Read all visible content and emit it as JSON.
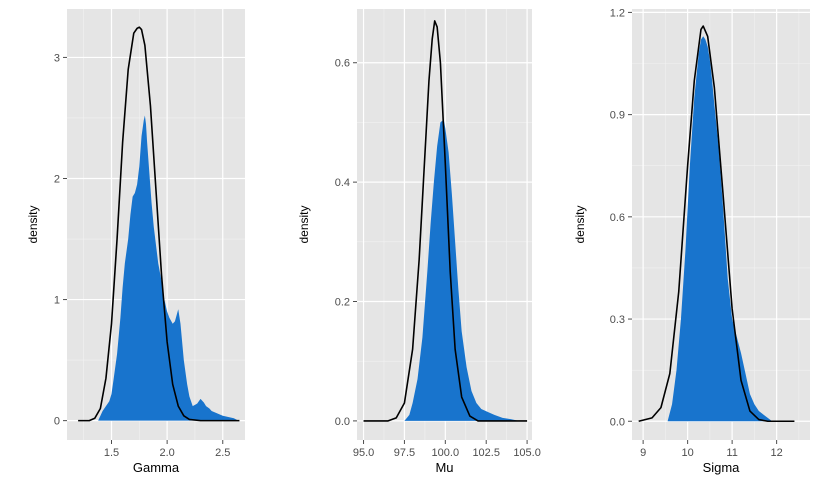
{
  "colors": {
    "panel_background": "#e5e5e5",
    "grid_major": "#ffffff",
    "grid_minor": "#f2f2f2",
    "density_fill": "#1874cd",
    "normal_curve": "#000000",
    "tick_text": "#4d4d4d"
  },
  "chart_data": [
    {
      "type": "area",
      "xlabel": "Gamma",
      "ylabel": "density",
      "xlim": [
        1.1,
        2.7
      ],
      "ylim": [
        -0.16,
        3.4
      ],
      "xticks": [
        1.5,
        2.0,
        2.5
      ],
      "xtick_labels": [
        "1.5",
        "2.0",
        "2.5"
      ],
      "yticks": [
        0,
        1,
        2,
        3
      ],
      "ytick_labels": [
        "0",
        "1",
        "2",
        "3"
      ],
      "grid": true,
      "series": [
        {
          "kind": "kernel-density-area",
          "x": [
            1.38,
            1.42,
            1.45,
            1.48,
            1.5,
            1.52,
            1.55,
            1.58,
            1.6,
            1.62,
            1.65,
            1.67,
            1.69,
            1.71,
            1.73,
            1.75,
            1.77,
            1.79,
            1.8,
            1.81,
            1.82,
            1.84,
            1.86,
            1.88,
            1.9,
            1.92,
            1.95,
            1.97,
            2.0,
            2.02,
            2.05,
            2.07,
            2.1,
            2.12,
            2.15,
            2.18,
            2.2,
            2.23,
            2.27,
            2.3,
            2.33,
            2.35,
            2.38,
            2.4,
            2.45,
            2.5,
            2.55,
            2.6,
            2.64
          ],
          "y": [
            0.0,
            0.08,
            0.12,
            0.16,
            0.22,
            0.35,
            0.55,
            0.85,
            1.1,
            1.3,
            1.5,
            1.7,
            1.85,
            1.88,
            1.95,
            2.1,
            2.35,
            2.48,
            2.52,
            2.45,
            2.3,
            2.05,
            1.8,
            1.6,
            1.45,
            1.3,
            1.15,
            1.02,
            0.9,
            0.85,
            0.8,
            0.82,
            0.92,
            0.8,
            0.5,
            0.3,
            0.2,
            0.12,
            0.14,
            0.18,
            0.15,
            0.12,
            0.1,
            0.08,
            0.06,
            0.04,
            0.03,
            0.02,
            0.0
          ]
        },
        {
          "kind": "normal-density-line",
          "x": [
            1.2,
            1.3,
            1.35,
            1.4,
            1.45,
            1.5,
            1.55,
            1.6,
            1.65,
            1.7,
            1.73,
            1.75,
            1.77,
            1.8,
            1.85,
            1.9,
            1.95,
            2.0,
            2.05,
            2.1,
            2.15,
            2.2,
            2.3,
            2.4,
            2.5,
            2.6,
            2.65
          ],
          "y": [
            0.0,
            0.0,
            0.02,
            0.1,
            0.35,
            0.8,
            1.5,
            2.3,
            2.9,
            3.2,
            3.24,
            3.25,
            3.23,
            3.1,
            2.6,
            1.9,
            1.2,
            0.65,
            0.3,
            0.12,
            0.04,
            0.01,
            0.0,
            0.0,
            0.0,
            0.0,
            0.0
          ]
        }
      ]
    },
    {
      "type": "area",
      "xlabel": "Mu",
      "ylabel": "density",
      "xlim": [
        94.6,
        105.3
      ],
      "ylim": [
        -0.032,
        0.69
      ],
      "xticks": [
        95.0,
        97.5,
        100.0,
        102.5,
        105.0
      ],
      "xtick_labels": [
        "95.0",
        "97.5",
        "100.0",
        "102.5",
        "105.0"
      ],
      "yticks": [
        0.0,
        0.2,
        0.4,
        0.6
      ],
      "ytick_labels": [
        "0.0",
        "0.2",
        "0.4",
        "0.6"
      ],
      "grid": true,
      "series": [
        {
          "kind": "kernel-density-area",
          "x": [
            97.5,
            97.8,
            98.0,
            98.3,
            98.6,
            98.9,
            99.1,
            99.3,
            99.5,
            99.7,
            99.9,
            100.0,
            100.2,
            100.4,
            100.6,
            100.8,
            101.0,
            101.3,
            101.6,
            101.9,
            102.2,
            102.6,
            103.0,
            103.5,
            104.0,
            104.5
          ],
          "y": [
            0.0,
            0.01,
            0.03,
            0.07,
            0.14,
            0.25,
            0.33,
            0.4,
            0.46,
            0.5,
            0.505,
            0.49,
            0.45,
            0.38,
            0.3,
            0.22,
            0.15,
            0.09,
            0.05,
            0.03,
            0.02,
            0.015,
            0.01,
            0.005,
            0.003,
            0.0
          ],
          "name": ""
        },
        {
          "kind": "normal-density-line",
          "x": [
            95.0,
            96.5,
            97.0,
            97.5,
            98.0,
            98.4,
            98.7,
            99.0,
            99.2,
            99.35,
            99.5,
            99.7,
            100.0,
            100.3,
            100.6,
            101.0,
            101.5,
            102.0,
            103.0,
            104.0,
            105.0
          ],
          "y": [
            0.0,
            0.0,
            0.005,
            0.03,
            0.12,
            0.27,
            0.42,
            0.57,
            0.64,
            0.67,
            0.66,
            0.6,
            0.43,
            0.25,
            0.12,
            0.04,
            0.008,
            0.0,
            0.0,
            0.0,
            0.0
          ]
        }
      ]
    },
    {
      "type": "area",
      "xlabel": "Sigma",
      "ylabel": "density",
      "xlim": [
        8.75,
        12.75
      ],
      "ylim": [
        -0.055,
        1.21
      ],
      "xticks": [
        9,
        10,
        11,
        12
      ],
      "xtick_labels": [
        "9",
        "10",
        "11",
        "12"
      ],
      "yticks": [
        0.0,
        0.3,
        0.6,
        0.9,
        1.2
      ],
      "ytick_labels": [
        "0.0",
        "0.3",
        "0.6",
        "0.9",
        "1.2"
      ],
      "grid": true,
      "series": [
        {
          "kind": "kernel-density-area",
          "x": [
            9.55,
            9.65,
            9.75,
            9.85,
            9.95,
            10.05,
            10.15,
            10.25,
            10.3,
            10.35,
            10.4,
            10.45,
            10.5,
            10.55,
            10.6,
            10.7,
            10.8,
            10.9,
            11.0,
            11.1,
            11.2,
            11.3,
            11.4,
            11.5,
            11.6,
            11.7,
            11.8,
            11.9
          ],
          "y": [
            0.0,
            0.05,
            0.15,
            0.3,
            0.5,
            0.75,
            0.95,
            1.08,
            1.12,
            1.13,
            1.12,
            1.1,
            1.06,
            1.0,
            0.93,
            0.8,
            0.62,
            0.42,
            0.3,
            0.25,
            0.2,
            0.14,
            0.08,
            0.05,
            0.03,
            0.02,
            0.01,
            0.0
          ]
        },
        {
          "kind": "normal-density-line",
          "x": [
            8.9,
            9.2,
            9.4,
            9.6,
            9.8,
            10.0,
            10.15,
            10.3,
            10.35,
            10.45,
            10.6,
            10.8,
            11.0,
            11.2,
            11.4,
            11.6,
            11.8,
            12.0,
            12.4
          ],
          "y": [
            0.0,
            0.01,
            0.04,
            0.14,
            0.38,
            0.75,
            1.0,
            1.15,
            1.16,
            1.13,
            0.98,
            0.66,
            0.33,
            0.12,
            0.03,
            0.005,
            0.0,
            0.0,
            0.0
          ]
        }
      ]
    }
  ]
}
